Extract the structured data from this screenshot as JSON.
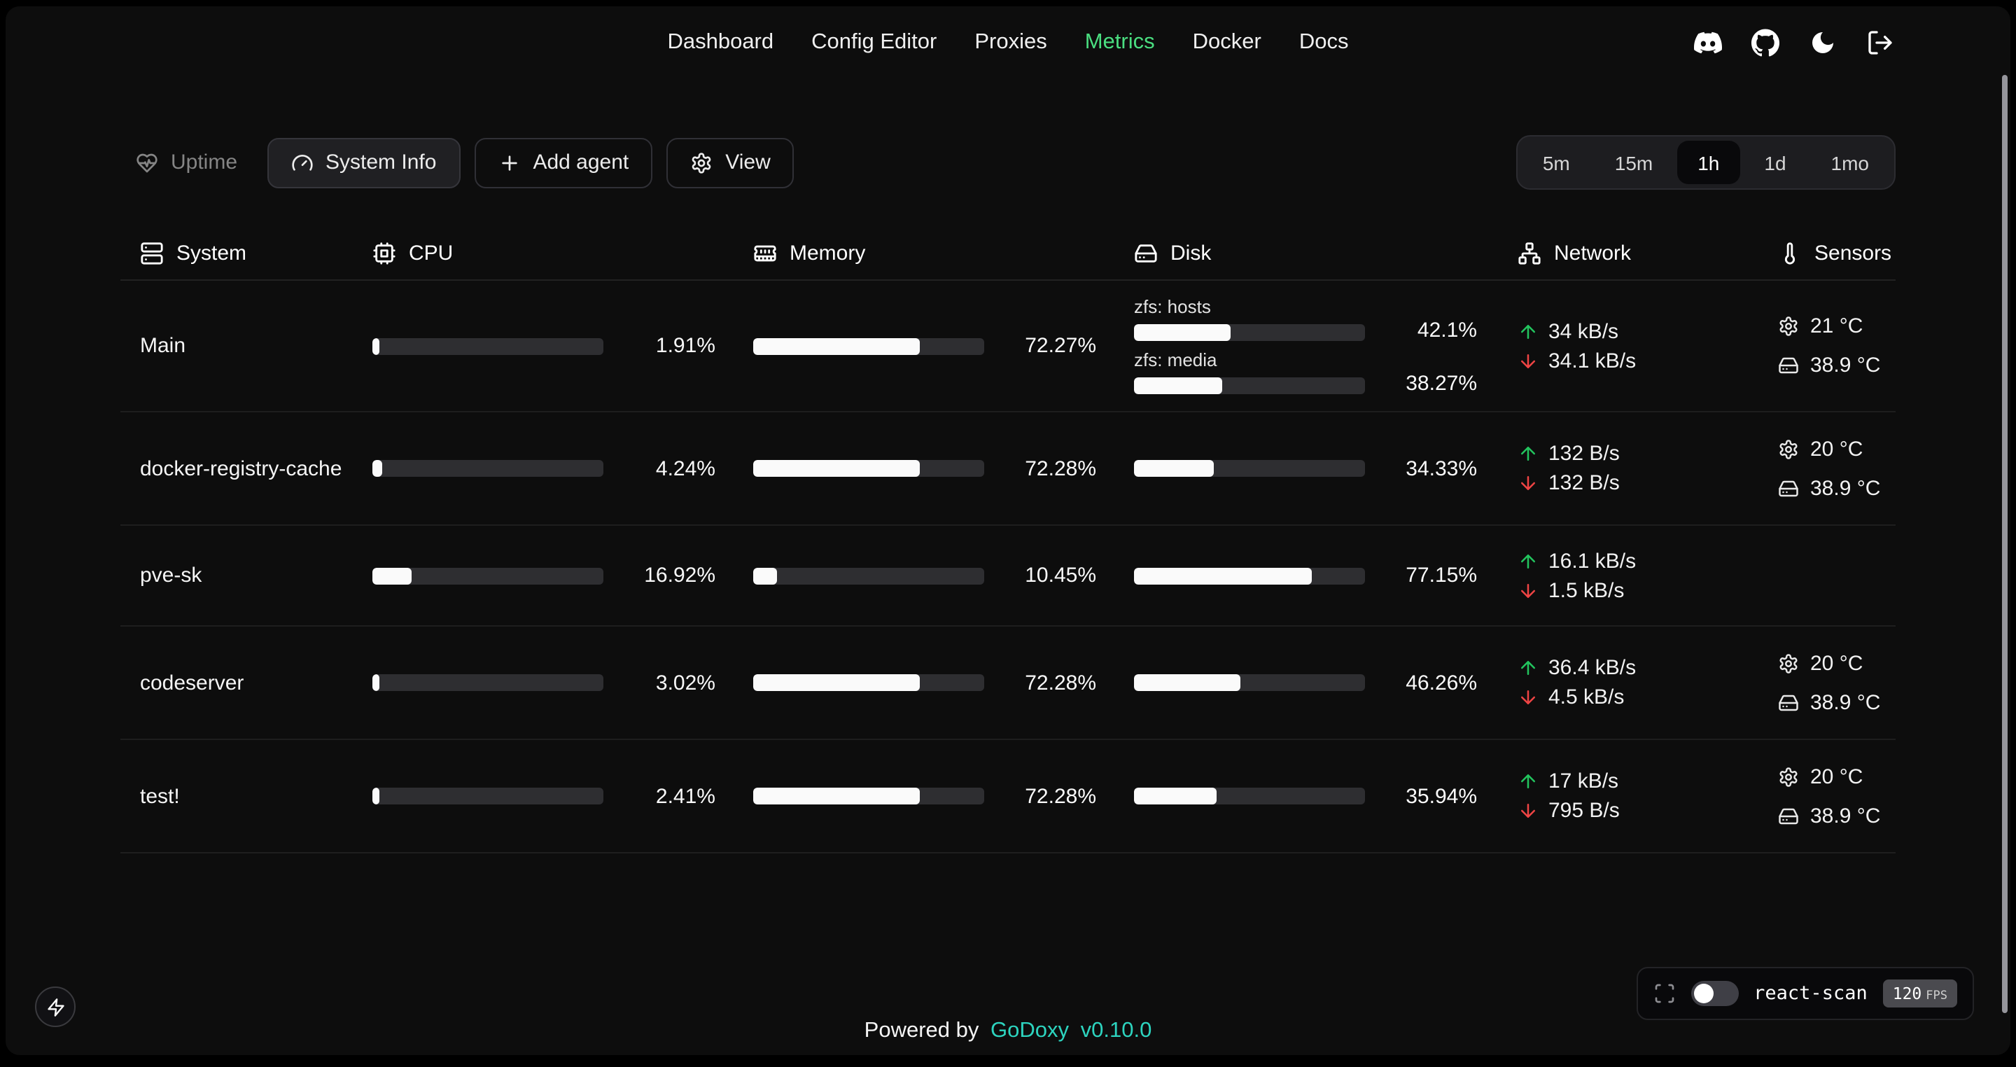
{
  "nav": {
    "items": [
      {
        "label": "Dashboard",
        "active": false
      },
      {
        "label": "Config Editor",
        "active": false
      },
      {
        "label": "Proxies",
        "active": false
      },
      {
        "label": "Metrics",
        "active": true
      },
      {
        "label": "Docker",
        "active": false
      },
      {
        "label": "Docs",
        "active": false
      }
    ],
    "icon_buttons": [
      {
        "name": "discord",
        "icon": "discord"
      },
      {
        "name": "github",
        "icon": "github"
      },
      {
        "name": "dark-mode",
        "icon": "moon"
      },
      {
        "name": "logout",
        "icon": "logout"
      }
    ]
  },
  "toolbar": {
    "uptime_label": "Uptime",
    "system_info_label": "System Info",
    "add_agent_label": "Add agent",
    "view_label": "View",
    "time_ranges": [
      "5m",
      "15m",
      "1h",
      "1d",
      "1mo"
    ],
    "selected_range": "1h"
  },
  "table": {
    "columns": [
      {
        "key": "system",
        "label": "System",
        "icon": "server"
      },
      {
        "key": "cpu",
        "label": "CPU",
        "icon": "cpu"
      },
      {
        "key": "memory",
        "label": "Memory",
        "icon": "memory"
      },
      {
        "key": "disk",
        "label": "Disk",
        "icon": "harddrive"
      },
      {
        "key": "network",
        "label": "Network",
        "icon": "network"
      },
      {
        "key": "sensors",
        "label": "Sensors",
        "icon": "thermometer"
      }
    ],
    "rows": [
      {
        "system": "Main",
        "cpu": {
          "percent": 1.91,
          "label": "1.91%"
        },
        "memory": {
          "percent": 72.27,
          "label": "72.27%"
        },
        "disks": [
          {
            "name": "zfs: hosts",
            "percent": 42.1,
            "label": "42.1%"
          },
          {
            "name": "zfs: media",
            "percent": 38.27,
            "label": "38.27%"
          }
        ],
        "network": {
          "up": "34 kB/s",
          "down": "34.1 kB/s"
        },
        "sensors": [
          {
            "icon": "cpu",
            "label": "21 °C"
          },
          {
            "icon": "disk",
            "label": "38.9 °C"
          }
        ]
      },
      {
        "system": "docker-registry-cache",
        "cpu": {
          "percent": 4.24,
          "label": "4.24%"
        },
        "memory": {
          "percent": 72.28,
          "label": "72.28%"
        },
        "disks": [
          {
            "name": "",
            "percent": 34.33,
            "label": "34.33%"
          }
        ],
        "network": {
          "up": "132 B/s",
          "down": "132 B/s"
        },
        "sensors": [
          {
            "icon": "cpu",
            "label": "20 °C"
          },
          {
            "icon": "disk",
            "label": "38.9 °C"
          }
        ]
      },
      {
        "system": "pve-sk",
        "cpu": {
          "percent": 16.92,
          "label": "16.92%"
        },
        "memory": {
          "percent": 10.45,
          "label": "10.45%"
        },
        "disks": [
          {
            "name": "",
            "percent": 77.15,
            "label": "77.15%"
          }
        ],
        "network": {
          "up": "16.1 kB/s",
          "down": "1.5 kB/s"
        },
        "sensors": []
      },
      {
        "system": "codeserver",
        "cpu": {
          "percent": 3.02,
          "label": "3.02%"
        },
        "memory": {
          "percent": 72.28,
          "label": "72.28%"
        },
        "disks": [
          {
            "name": "",
            "percent": 46.26,
            "label": "46.26%"
          }
        ],
        "network": {
          "up": "36.4 kB/s",
          "down": "4.5 kB/s"
        },
        "sensors": [
          {
            "icon": "cpu",
            "label": "20 °C"
          },
          {
            "icon": "disk",
            "label": "38.9 °C"
          }
        ]
      },
      {
        "system": "test!",
        "cpu": {
          "percent": 2.41,
          "label": "2.41%"
        },
        "memory": {
          "percent": 72.28,
          "label": "72.28%"
        },
        "disks": [
          {
            "name": "",
            "percent": 35.94,
            "label": "35.94%"
          }
        ],
        "network": {
          "up": "17 kB/s",
          "down": "795 B/s"
        },
        "sensors": [
          {
            "icon": "cpu",
            "label": "20 °C"
          },
          {
            "icon": "disk",
            "label": "38.9 °C"
          }
        ]
      }
    ]
  },
  "footer": {
    "powered_by": "Powered by",
    "brand": "GoDoxy",
    "version": "v0.10.0"
  },
  "react_scan": {
    "label": "react-scan",
    "fps": "120",
    "fps_unit": "FPS",
    "toggle_on": false
  },
  "colors": {
    "nav_active": "#4ade80",
    "brand": "#2dd4bf",
    "network_up": "#22c55e",
    "network_down": "#ef4444",
    "bar_fill": "#fafafa",
    "bar_track": "#2e2e31"
  }
}
